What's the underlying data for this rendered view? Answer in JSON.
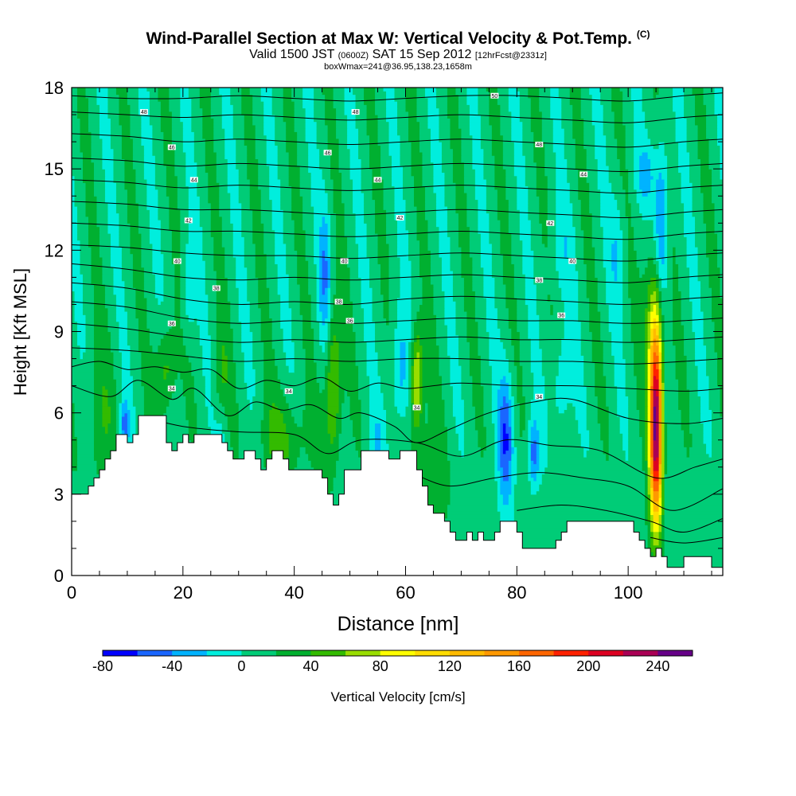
{
  "title": {
    "main": "Wind-Parallel Section at Max W: Vertical Velocity & Pot.Temp.",
    "main_tag": "(C)",
    "valid_prefix": "Valid 1500 JST",
    "valid_utc": "(0600Z)",
    "valid_date": "SAT 15 Sep 2012",
    "forecast": "[12hrFcst@2331z]",
    "boxline": "boxWmax=241@36.95,138.23,1658m"
  },
  "chart_data": {
    "type": "heatmap",
    "xlabel": "Distance [nm]",
    "ylabel": "Height [Kft MSL]",
    "xlim": [
      0,
      117
    ],
    "ylim": [
      0,
      18
    ],
    "xticks": [
      "0",
      "20",
      "40",
      "60",
      "80",
      "100"
    ],
    "yticks": [
      "0",
      "3",
      "6",
      "9",
      "12",
      "15",
      "18"
    ],
    "colorbar": {
      "label": "Vertical Velocity [cm/s]",
      "tick_labels": [
        "-80",
        "-40",
        "0",
        "40",
        "80",
        "120",
        "160",
        "200",
        "240"
      ],
      "levels": [
        -80,
        -60,
        -40,
        -20,
        0,
        20,
        40,
        60,
        80,
        100,
        120,
        140,
        160,
        180,
        200,
        220,
        240,
        260
      ],
      "colors": [
        "#0000ff",
        "#1a66ff",
        "#00b3ff",
        "#00eedd",
        "#00cc77",
        "#00b030",
        "#33bb00",
        "#99dd00",
        "#ffff00",
        "#ffdd00",
        "#ffbb00",
        "#ff9900",
        "#ff6600",
        "#ff2200",
        "#dd0022",
        "#aa0055",
        "#660088"
      ]
    },
    "background_value_cm_s": 10,
    "max_w": {
      "value_cm_s": 241,
      "x_nm": 105,
      "z_kft": 5
    },
    "w_features": [
      {
        "kind": "updraft",
        "x": 105,
        "z": 5.5,
        "sx": 0.8,
        "sz": 2.5,
        "w": 240
      },
      {
        "kind": "updraft",
        "x": 104.5,
        "z": 9.5,
        "sx": 1.2,
        "sz": 2.0,
        "w": 50
      },
      {
        "kind": "updraft",
        "x": 62,
        "z": 7.2,
        "sx": 0.8,
        "sz": 1.3,
        "w": 85
      },
      {
        "kind": "updraft",
        "x": 47,
        "z": 7.0,
        "sx": 1.0,
        "sz": 2.0,
        "w": 65
      },
      {
        "kind": "updraft",
        "x": 17,
        "z": 7.6,
        "sx": 1.2,
        "sz": 1.2,
        "w": 45
      },
      {
        "kind": "updraft",
        "x": 38,
        "z": 5.0,
        "sx": 3.0,
        "sz": 1.2,
        "w": 35
      },
      {
        "kind": "updraft",
        "x": 27,
        "z": 7.0,
        "sx": 1.0,
        "sz": 1.5,
        "w": 30
      },
      {
        "kind": "updraft",
        "x": 5,
        "z": 5.5,
        "sx": 2.0,
        "sz": 2.0,
        "w": 25
      },
      {
        "kind": "updraft",
        "x": 64,
        "z": 3.5,
        "sx": 2.0,
        "sz": 1.5,
        "w": 30
      },
      {
        "kind": "downdraft",
        "x": 106,
        "z": 13,
        "sx": 0.9,
        "sz": 2.2,
        "w": -60
      },
      {
        "kind": "downdraft",
        "x": 103,
        "z": 14.8,
        "sx": 1.2,
        "sz": 0.7,
        "w": -35
      },
      {
        "kind": "downdraft",
        "x": 78,
        "z": 5.0,
        "sx": 1.0,
        "sz": 1.7,
        "w": -65
      },
      {
        "kind": "downdraft",
        "x": 83,
        "z": 4.5,
        "sx": 0.7,
        "sz": 0.9,
        "w": -60
      },
      {
        "kind": "downdraft",
        "x": 9.5,
        "z": 5.6,
        "sx": 0.6,
        "sz": 0.6,
        "w": -55
      },
      {
        "kind": "downdraft",
        "x": 59,
        "z": 7.5,
        "sx": 1.2,
        "sz": 1.5,
        "w": -40
      },
      {
        "kind": "downdraft",
        "x": 45.5,
        "z": 11,
        "sx": 0.8,
        "sz": 1.8,
        "w": -45
      },
      {
        "kind": "downdraft",
        "x": 21,
        "z": 10.5,
        "sx": 0.8,
        "sz": 1.2,
        "w": -30
      },
      {
        "kind": "downdraft",
        "x": 88,
        "z": 7.0,
        "sx": 1.2,
        "sz": 1.5,
        "w": -30
      },
      {
        "kind": "downdraft",
        "x": 27,
        "z": 5.5,
        "sx": 0.8,
        "sz": 1.0,
        "w": -25
      },
      {
        "kind": "downdraft",
        "x": 98,
        "z": 12,
        "sx": 1.0,
        "sz": 1.5,
        "w": -25
      },
      {
        "kind": "downdraft",
        "x": 88,
        "z": 12,
        "sx": 1.5,
        "sz": 1.2,
        "w": -20
      },
      {
        "kind": "downdraft",
        "x": 55,
        "z": 4.8,
        "sx": 1.0,
        "sz": 1.0,
        "w": -25
      }
    ],
    "terrain_kft": [
      [
        0,
        3.0
      ],
      [
        3,
        3.0
      ],
      [
        3,
        3.3
      ],
      [
        4,
        3.3
      ],
      [
        4,
        3.6
      ],
      [
        5,
        3.6
      ],
      [
        5,
        3.9
      ],
      [
        6,
        3.9
      ],
      [
        6,
        4.3
      ],
      [
        7,
        4.3
      ],
      [
        7,
        4.6
      ],
      [
        8,
        4.6
      ],
      [
        8,
        5.2
      ],
      [
        10,
        5.2
      ],
      [
        10,
        4.9
      ],
      [
        11,
        4.9
      ],
      [
        11,
        5.2
      ],
      [
        12,
        5.2
      ],
      [
        12,
        5.9
      ],
      [
        17,
        5.9
      ],
      [
        17,
        4.9
      ],
      [
        18,
        4.9
      ],
      [
        18,
        4.6
      ],
      [
        19,
        4.6
      ],
      [
        19,
        4.9
      ],
      [
        20,
        4.9
      ],
      [
        20,
        5.2
      ],
      [
        21,
        5.2
      ],
      [
        21,
        4.9
      ],
      [
        22,
        4.9
      ],
      [
        22,
        5.2
      ],
      [
        27,
        5.2
      ],
      [
        27,
        4.9
      ],
      [
        28,
        4.9
      ],
      [
        28,
        4.6
      ],
      [
        29,
        4.6
      ],
      [
        29,
        4.3
      ],
      [
        31,
        4.3
      ],
      [
        31,
        4.6
      ],
      [
        33,
        4.6
      ],
      [
        33,
        4.3
      ],
      [
        34,
        4.3
      ],
      [
        34,
        3.9
      ],
      [
        35,
        3.9
      ],
      [
        35,
        4.3
      ],
      [
        36,
        4.3
      ],
      [
        36,
        4.6
      ],
      [
        38,
        4.6
      ],
      [
        38,
        4.3
      ],
      [
        39,
        4.3
      ],
      [
        39,
        3.9
      ],
      [
        45,
        3.9
      ],
      [
        45,
        3.6
      ],
      [
        46,
        3.6
      ],
      [
        46,
        3.0
      ],
      [
        47,
        3.0
      ],
      [
        47,
        2.6
      ],
      [
        48,
        2.6
      ],
      [
        48,
        3.0
      ],
      [
        49,
        3.0
      ],
      [
        49,
        3.9
      ],
      [
        52,
        3.9
      ],
      [
        52,
        4.6
      ],
      [
        57,
        4.6
      ],
      [
        57,
        4.3
      ],
      [
        59,
        4.3
      ],
      [
        59,
        4.6
      ],
      [
        62,
        4.6
      ],
      [
        62,
        3.9
      ],
      [
        63,
        3.9
      ],
      [
        63,
        3.3
      ],
      [
        64,
        3.3
      ],
      [
        64,
        2.6
      ],
      [
        65,
        2.6
      ],
      [
        65,
        2.3
      ],
      [
        67,
        2.3
      ],
      [
        67,
        2.0
      ],
      [
        68,
        2.0
      ],
      [
        68,
        1.6
      ],
      [
        69,
        1.6
      ],
      [
        69,
        1.3
      ],
      [
        71,
        1.3
      ],
      [
        71,
        1.6
      ],
      [
        72,
        1.6
      ],
      [
        72,
        1.3
      ],
      [
        73,
        1.3
      ],
      [
        73,
        1.6
      ],
      [
        74,
        1.6
      ],
      [
        74,
        1.3
      ],
      [
        76,
        1.3
      ],
      [
        76,
        1.6
      ],
      [
        77,
        1.6
      ],
      [
        77,
        2.0
      ],
      [
        80,
        2.0
      ],
      [
        80,
        1.6
      ],
      [
        81,
        1.6
      ],
      [
        81,
        1.0
      ],
      [
        87,
        1.0
      ],
      [
        87,
        1.3
      ],
      [
        88,
        1.3
      ],
      [
        88,
        1.6
      ],
      [
        89,
        1.6
      ],
      [
        89,
        2.0
      ],
      [
        101,
        2.0
      ],
      [
        101,
        1.6
      ],
      [
        102,
        1.6
      ],
      [
        102,
        1.3
      ],
      [
        103,
        1.3
      ],
      [
        103,
        1.0
      ],
      [
        104,
        1.0
      ],
      [
        104,
        0.7
      ],
      [
        105,
        0.7
      ],
      [
        105,
        1.0
      ],
      [
        106,
        1.0
      ],
      [
        106,
        0.7
      ],
      [
        107,
        0.7
      ],
      [
        107,
        0.3
      ],
      [
        110,
        0.3
      ],
      [
        110,
        0.7
      ],
      [
        115,
        0.7
      ],
      [
        115,
        0.3
      ],
      [
        117,
        0.3
      ]
    ],
    "isentropes": [
      {
        "xs": [
          0,
          10,
          20,
          30,
          40,
          50,
          60,
          70,
          80,
          90,
          100,
          110,
          117
        ],
        "zs": [
          17.7,
          17.6,
          17.6,
          17.7,
          17.6,
          17.5,
          17.6,
          17.7,
          17.7,
          17.6,
          17.5,
          17.7,
          17.8
        ]
      },
      {
        "xs": [
          0,
          10,
          20,
          30,
          40,
          50,
          60,
          70,
          80,
          90,
          100,
          110,
          117
        ],
        "zs": [
          17.1,
          17.0,
          16.9,
          17.0,
          16.9,
          16.8,
          16.9,
          17.0,
          16.9,
          16.8,
          16.7,
          16.9,
          17.0
        ]
      },
      {
        "xs": [
          0,
          10,
          20,
          30,
          40,
          50,
          60,
          70,
          80,
          90,
          100,
          110,
          117
        ],
        "zs": [
          16.3,
          16.2,
          16.0,
          16.1,
          16.0,
          15.9,
          16.0,
          16.1,
          16.0,
          15.9,
          15.8,
          16.0,
          16.1
        ]
      },
      {
        "xs": [
          0,
          10,
          20,
          30,
          40,
          50,
          60,
          70,
          80,
          90,
          100,
          110,
          117
        ],
        "zs": [
          15.4,
          15.3,
          15.1,
          15.2,
          15.1,
          15.0,
          15.1,
          15.2,
          15.1,
          15.0,
          14.9,
          15.1,
          15.2
        ]
      },
      {
        "xs": [
          0,
          10,
          20,
          30,
          40,
          50,
          60,
          70,
          80,
          90,
          100,
          110,
          117
        ],
        "zs": [
          14.6,
          14.5,
          14.3,
          14.4,
          14.3,
          14.2,
          14.3,
          14.4,
          14.3,
          14.2,
          14.1,
          14.3,
          14.4
        ]
      },
      {
        "xs": [
          0,
          10,
          20,
          30,
          40,
          50,
          60,
          70,
          80,
          90,
          100,
          110,
          117
        ],
        "zs": [
          13.8,
          13.7,
          13.5,
          13.5,
          13.4,
          13.3,
          13.4,
          13.5,
          13.4,
          13.3,
          13.2,
          13.4,
          13.5
        ]
      },
      {
        "xs": [
          0,
          10,
          20,
          30,
          40,
          50,
          60,
          70,
          80,
          90,
          100,
          110,
          117
        ],
        "zs": [
          13.0,
          12.9,
          12.7,
          12.7,
          12.6,
          12.5,
          12.6,
          12.7,
          12.6,
          12.5,
          12.4,
          12.6,
          12.7
        ]
      },
      {
        "xs": [
          0,
          10,
          20,
          30,
          40,
          50,
          60,
          70,
          80,
          90,
          100,
          110,
          117
        ],
        "zs": [
          12.2,
          12.1,
          11.9,
          11.8,
          11.8,
          11.7,
          11.8,
          11.9,
          11.8,
          11.7,
          11.6,
          11.8,
          11.9
        ]
      },
      {
        "xs": [
          0,
          10,
          20,
          30,
          40,
          50,
          60,
          70,
          80,
          90,
          100,
          110,
          117
        ],
        "zs": [
          11.5,
          11.3,
          11.0,
          10.9,
          11.0,
          10.9,
          11.0,
          11.1,
          11.0,
          10.9,
          10.8,
          11.0,
          11.1
        ]
      },
      {
        "xs": [
          0,
          10,
          20,
          30,
          40,
          50,
          60,
          70,
          80,
          90,
          100,
          110,
          117
        ],
        "zs": [
          10.8,
          10.6,
          10.2,
          10.0,
          10.1,
          10.0,
          10.2,
          10.3,
          10.2,
          10.1,
          10.0,
          10.2,
          10.3
        ]
      },
      {
        "xs": [
          0,
          10,
          20,
          30,
          40,
          50,
          60,
          70,
          80,
          90,
          100,
          110,
          117
        ],
        "zs": [
          10.1,
          9.9,
          9.5,
          9.3,
          9.4,
          9.3,
          9.4,
          9.5,
          9.4,
          9.4,
          9.3,
          9.4,
          9.5
        ]
      },
      {
        "xs": [
          0,
          10,
          20,
          30,
          40,
          50,
          60,
          70,
          80,
          90,
          100,
          110,
          117
        ],
        "zs": [
          9.3,
          9.1,
          8.8,
          8.6,
          8.7,
          8.6,
          8.7,
          8.8,
          8.7,
          8.7,
          8.6,
          8.7,
          8.8
        ]
      },
      {
        "xs": [
          0,
          10,
          20,
          30,
          40,
          50,
          60,
          70,
          80,
          90,
          100,
          110,
          117
        ],
        "zs": [
          8.4,
          8.3,
          8.1,
          7.9,
          8.0,
          7.9,
          8.0,
          8.0,
          7.9,
          7.9,
          7.8,
          7.9,
          8.0
        ]
      },
      {
        "xs": [
          0,
          5,
          10,
          15,
          20,
          25,
          30,
          35,
          40,
          45,
          50,
          55,
          60,
          65,
          70,
          80,
          90,
          100,
          110,
          117
        ],
        "zs": [
          7.7,
          7.9,
          7.6,
          7.7,
          7.5,
          7.6,
          6.9,
          7.2,
          7.0,
          7.3,
          6.8,
          7.1,
          6.9,
          7.0,
          7.1,
          7.0,
          7.0,
          6.9,
          6.8,
          6.9
        ]
      },
      {
        "xs": [
          0,
          7,
          12,
          18,
          22,
          28,
          33,
          38,
          43,
          48,
          52,
          58,
          62,
          68,
          75,
          83,
          90,
          100,
          110,
          117
        ],
        "zs": [
          7.0,
          6.6,
          7.2,
          6.5,
          6.9,
          5.9,
          6.4,
          6.1,
          6.3,
          5.8,
          6.0,
          5.5,
          4.9,
          5.4,
          6.0,
          6.4,
          6.5,
          5.8,
          5.6,
          5.8
        ]
      },
      {
        "xs": [
          12,
          20,
          30,
          40,
          46,
          52,
          62,
          70,
          78,
          86,
          95,
          105,
          112,
          117
        ],
        "zs": [
          5.9,
          5.5,
          5.3,
          5.2,
          4.5,
          5.0,
          4.9,
          4.4,
          5.0,
          4.8,
          4.6,
          3.6,
          4.0,
          4.3
        ]
      },
      {
        "xs": [
          62,
          68,
          76,
          84,
          92,
          100,
          108,
          117
        ],
        "zs": [
          3.7,
          3.3,
          3.6,
          3.8,
          3.6,
          3.3,
          2.4,
          3.2
        ]
      },
      {
        "xs": [
          80,
          88,
          96,
          104,
          110,
          117
        ],
        "zs": [
          2.4,
          2.6,
          2.4,
          2.0,
          1.6,
          2.1
        ]
      },
      {
        "xs": [
          104,
          110,
          117
        ],
        "zs": [
          1.4,
          1.2,
          1.4
        ]
      }
    ],
    "isentrope_labels": [
      {
        "text": "48",
        "x": 13,
        "z": 17.1
      },
      {
        "text": "48",
        "x": 51,
        "z": 17.1
      },
      {
        "text": "50",
        "x": 76,
        "z": 17.7
      },
      {
        "text": "46",
        "x": 18,
        "z": 15.8
      },
      {
        "text": "46",
        "x": 46,
        "z": 15.6
      },
      {
        "text": "48",
        "x": 84,
        "z": 15.9
      },
      {
        "text": "44",
        "x": 22,
        "z": 14.6
      },
      {
        "text": "44",
        "x": 55,
        "z": 14.6
      },
      {
        "text": "44",
        "x": 92,
        "z": 14.8
      },
      {
        "text": "42",
        "x": 21,
        "z": 13.1
      },
      {
        "text": "42",
        "x": 59,
        "z": 13.2
      },
      {
        "text": "42",
        "x": 86,
        "z": 13.0
      },
      {
        "text": "40",
        "x": 19,
        "z": 11.6
      },
      {
        "text": "40",
        "x": 49,
        "z": 11.6
      },
      {
        "text": "40",
        "x": 90,
        "z": 11.6
      },
      {
        "text": "38",
        "x": 26,
        "z": 10.6
      },
      {
        "text": "38",
        "x": 48,
        "z": 10.1
      },
      {
        "text": "38",
        "x": 84,
        "z": 10.9
      },
      {
        "text": "36",
        "x": 18,
        "z": 9.3
      },
      {
        "text": "36",
        "x": 50,
        "z": 9.4
      },
      {
        "text": "36",
        "x": 88,
        "z": 9.6
      },
      {
        "text": "34",
        "x": 18,
        "z": 6.9
      },
      {
        "text": "34",
        "x": 39,
        "z": 6.8
      },
      {
        "text": "34",
        "x": 62,
        "z": 6.2
      },
      {
        "text": "34",
        "x": 84,
        "z": 6.6
      }
    ]
  }
}
